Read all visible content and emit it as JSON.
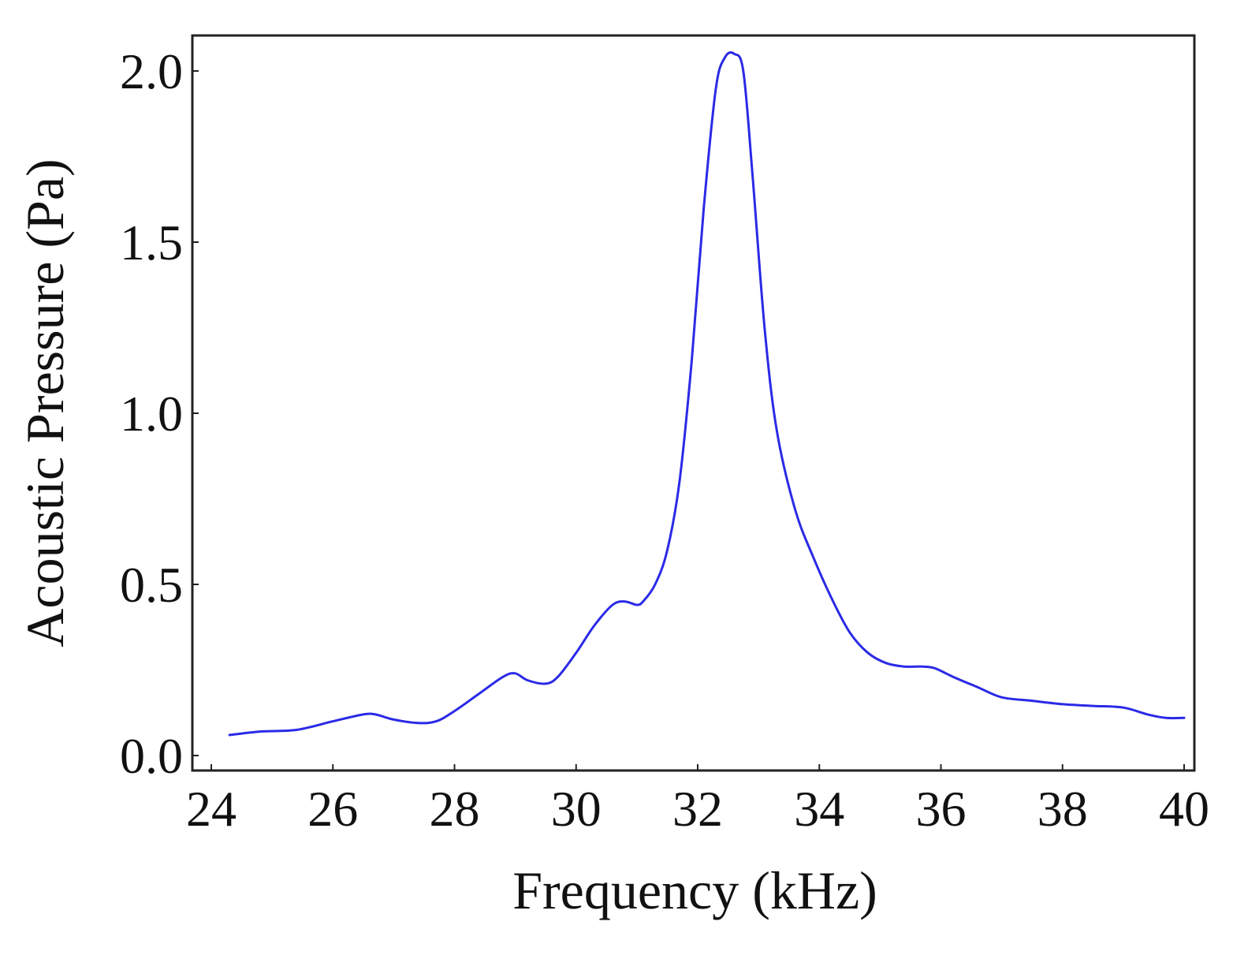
{
  "chart_data": {
    "type": "line",
    "title": "",
    "xlabel": "Frequency (kHz)",
    "ylabel": "Acoustic Pressure (Pa)",
    "xlim": [
      24,
      40
    ],
    "ylim": [
      0.0,
      2.05
    ],
    "xticks": [
      24,
      26,
      28,
      30,
      32,
      34,
      36,
      38,
      40
    ],
    "yticks": [
      0.0,
      0.5,
      1.0,
      1.5,
      2.0
    ],
    "xtick_labels": [
      "24",
      "26",
      "28",
      "30",
      "32",
      "34",
      "36",
      "38",
      "40"
    ],
    "ytick_labels": [
      "0.0",
      "0.5",
      "1.0",
      "1.5",
      "2.0"
    ],
    "grid": false,
    "legend": "none",
    "line_color": "#2a2ae6",
    "series": [
      {
        "x": [
          24.3,
          24.8,
          25.4,
          26.0,
          26.5,
          26.7,
          27.0,
          27.4,
          27.7,
          28.0,
          28.4,
          28.8,
          29.0,
          29.2,
          29.5,
          29.7,
          30.0,
          30.3,
          30.6,
          30.8,
          31.0,
          31.1,
          31.3,
          31.5,
          31.7,
          31.9,
          32.1,
          32.3,
          32.45,
          32.6,
          32.75,
          32.9,
          33.1,
          33.3,
          33.6,
          33.9,
          34.2,
          34.5,
          34.8,
          35.1,
          35.4,
          35.7,
          35.9,
          36.2,
          36.6,
          37.0,
          37.5,
          38.0,
          38.5,
          39.0,
          39.4,
          39.7,
          40.0
        ],
        "y": [
          0.06,
          0.07,
          0.075,
          0.1,
          0.12,
          0.12,
          0.105,
          0.095,
          0.1,
          0.13,
          0.18,
          0.23,
          0.24,
          0.22,
          0.21,
          0.23,
          0.3,
          0.38,
          0.44,
          0.45,
          0.44,
          0.45,
          0.5,
          0.6,
          0.8,
          1.15,
          1.6,
          1.95,
          2.04,
          2.05,
          2.0,
          1.7,
          1.25,
          0.95,
          0.72,
          0.58,
          0.46,
          0.36,
          0.3,
          0.27,
          0.26,
          0.26,
          0.255,
          0.23,
          0.2,
          0.17,
          0.16,
          0.15,
          0.145,
          0.14,
          0.12,
          0.11,
          0.11
        ]
      }
    ]
  }
}
